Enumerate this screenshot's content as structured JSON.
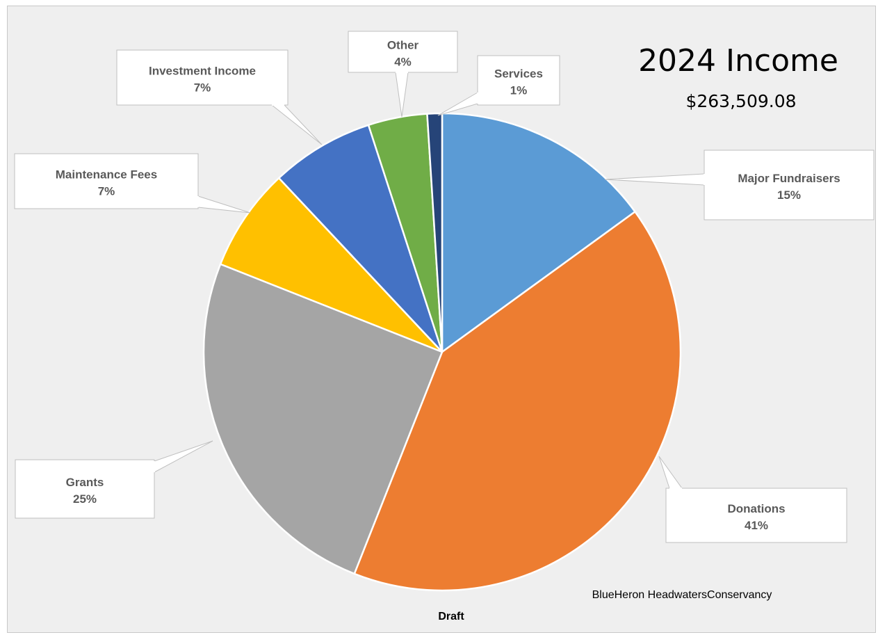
{
  "chart_data": {
    "type": "pie",
    "title": "2024 Income",
    "subtitle": "$263,509.08",
    "footer_org": "BlueHeron HeadwatersConservancy",
    "footer_status": "Draft",
    "start_angle_deg": 0,
    "direction": "clockwise",
    "slices": [
      {
        "name": "Major Fundraisers",
        "value": 15,
        "label": "15%",
        "color": "#5b9bd5"
      },
      {
        "name": "Donations",
        "value": 41,
        "label": "41%",
        "color": "#ed7d31"
      },
      {
        "name": "Grants",
        "value": 25,
        "label": "25%",
        "color": "#a5a5a5"
      },
      {
        "name": "Maintenance Fees",
        "value": 7,
        "label": "7%",
        "color": "#ffc000"
      },
      {
        "name": "Investment Income",
        "value": 7,
        "label": "7%",
        "color": "#4472c4"
      },
      {
        "name": "Other",
        "value": 4,
        "label": "4%",
        "color": "#70ad47"
      },
      {
        "name": "Services",
        "value": 1,
        "label": "1%",
        "color": "#264478"
      }
    ],
    "legend": "none",
    "data_labels": "callouts"
  }
}
